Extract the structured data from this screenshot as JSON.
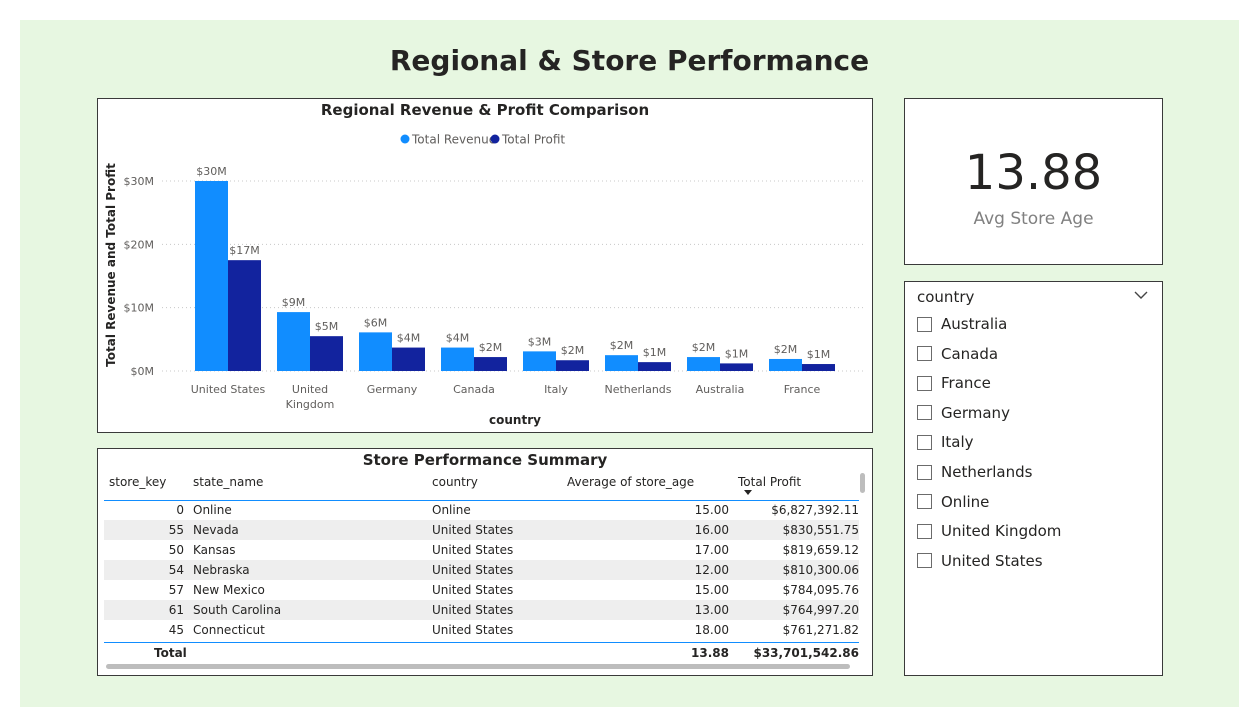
{
  "page": {
    "title": "Regional & Store Performance"
  },
  "colors": {
    "revenue": "#118dff",
    "profit": "#12239e",
    "background": "#e7f7e1"
  },
  "chart_data": {
    "type": "bar",
    "title": "Regional Revenue & Profit Comparison",
    "xlabel": "country",
    "ylabel": "Total Revenue and Total Profit",
    "categories": [
      "United States",
      "United Kingdom",
      "Germany",
      "Canada",
      "Italy",
      "Netherlands",
      "Australia",
      "France"
    ],
    "category_lines": [
      [
        "United States"
      ],
      [
        "United",
        "Kingdom"
      ],
      [
        "Germany"
      ],
      [
        "Canada"
      ],
      [
        "Italy"
      ],
      [
        "Netherlands"
      ],
      [
        "Australia"
      ],
      [
        "France"
      ]
    ],
    "series": [
      {
        "name": "Total Revenue",
        "values": [
          30,
          9.3,
          6.1,
          3.7,
          3.1,
          2.5,
          2.2,
          1.9
        ],
        "labels": [
          "$30M",
          "$9M",
          "$6M",
          "$4M",
          "$3M",
          "$2M",
          "$2M",
          "$2M"
        ]
      },
      {
        "name": "Total Profit",
        "values": [
          17.5,
          5.5,
          3.7,
          2.2,
          1.7,
          1.4,
          1.2,
          1.1
        ],
        "labels": [
          "$17M",
          "$5M",
          "$4M",
          "$2M",
          "$2M",
          "$1M",
          "$1M",
          "$1M"
        ]
      }
    ],
    "yticks": [
      0,
      10,
      20,
      30
    ],
    "ytick_labels": [
      "$0M",
      "$10M",
      "$20M",
      "$30M"
    ],
    "ylim": [
      0,
      32
    ],
    "legend_position": "top-center",
    "grid": true
  },
  "card": {
    "value": "13.88",
    "label": "Avg Store Age"
  },
  "slicer": {
    "header": "country",
    "items": [
      "Australia",
      "Canada",
      "France",
      "Germany",
      "Italy",
      "Netherlands",
      "Online",
      "United Kingdom",
      "United States"
    ]
  },
  "table": {
    "title": "Store Performance Summary",
    "columns": [
      "store_key",
      "state_name",
      "country",
      "Average of store_age",
      "Total Profit"
    ],
    "rows": [
      [
        "0",
        "Online",
        "Online",
        "15.00",
        "$6,827,392.11"
      ],
      [
        "55",
        "Nevada",
        "United States",
        "16.00",
        "$830,551.75"
      ],
      [
        "50",
        "Kansas",
        "United States",
        "17.00",
        "$819,659.12"
      ],
      [
        "54",
        "Nebraska",
        "United States",
        "12.00",
        "$810,300.06"
      ],
      [
        "57",
        "New Mexico",
        "United States",
        "15.00",
        "$784,095.76"
      ],
      [
        "61",
        "South Carolina",
        "United States",
        "13.00",
        "$764,997.20"
      ],
      [
        "45",
        "Connecticut",
        "United States",
        "18.00",
        "$761,271.82"
      ]
    ],
    "total": {
      "label": "Total",
      "avg_age": "13.88",
      "profit": "$33,701,542.86"
    }
  }
}
